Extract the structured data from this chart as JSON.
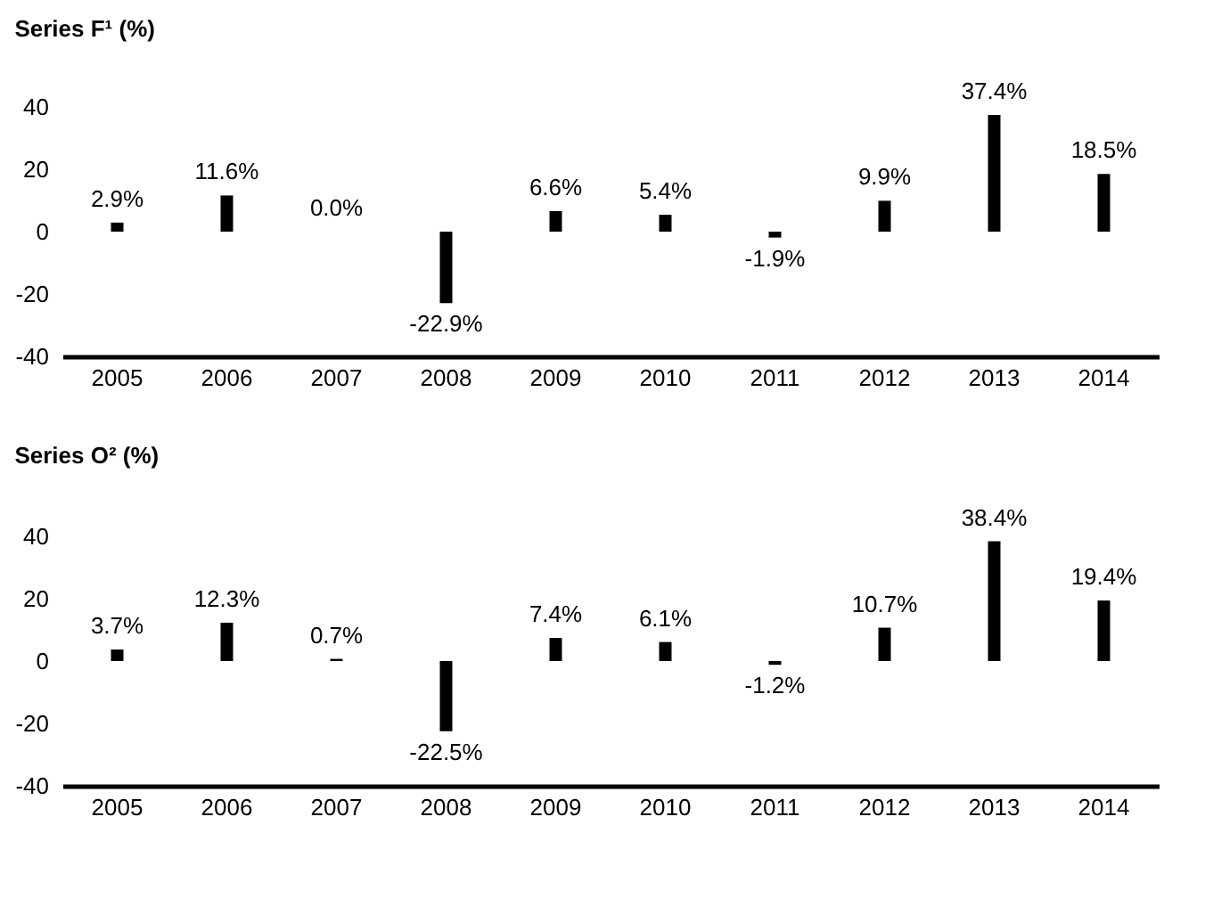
{
  "chart_data": [
    {
      "type": "bar",
      "title": "Series F¹ (%)",
      "categories": [
        "2005",
        "2006",
        "2007",
        "2008",
        "2009",
        "2010",
        "2011",
        "2012",
        "2013",
        "2014"
      ],
      "values": [
        2.9,
        11.6,
        0.0,
        -22.9,
        6.6,
        5.4,
        -1.9,
        9.9,
        37.4,
        18.5
      ],
      "value_labels": [
        "2.9%",
        "11.6%",
        "0.0%",
        "-22.9%",
        "6.6%",
        "5.4%",
        "-1.9%",
        "9.9%",
        "37.4%",
        "18.5%"
      ],
      "color": "#000000",
      "ylim": [
        -40,
        40
      ],
      "yticks": [
        -40,
        -20,
        0,
        20,
        40
      ]
    },
    {
      "type": "bar",
      "title": "Series O² (%)",
      "categories": [
        "2005",
        "2006",
        "2007",
        "2008",
        "2009",
        "2010",
        "2011",
        "2012",
        "2013",
        "2014"
      ],
      "values": [
        3.7,
        12.3,
        0.7,
        -22.5,
        7.4,
        6.1,
        -1.2,
        10.7,
        38.4,
        19.4
      ],
      "value_labels": [
        "3.7%",
        "12.3%",
        "0.7%",
        "-22.5%",
        "7.4%",
        "6.1%",
        "-1.2%",
        "10.7%",
        "38.4%",
        "19.4%"
      ],
      "color": "#000000",
      "ylim": [
        -40,
        40
      ],
      "yticks": [
        -40,
        -20,
        0,
        20,
        40
      ]
    }
  ]
}
